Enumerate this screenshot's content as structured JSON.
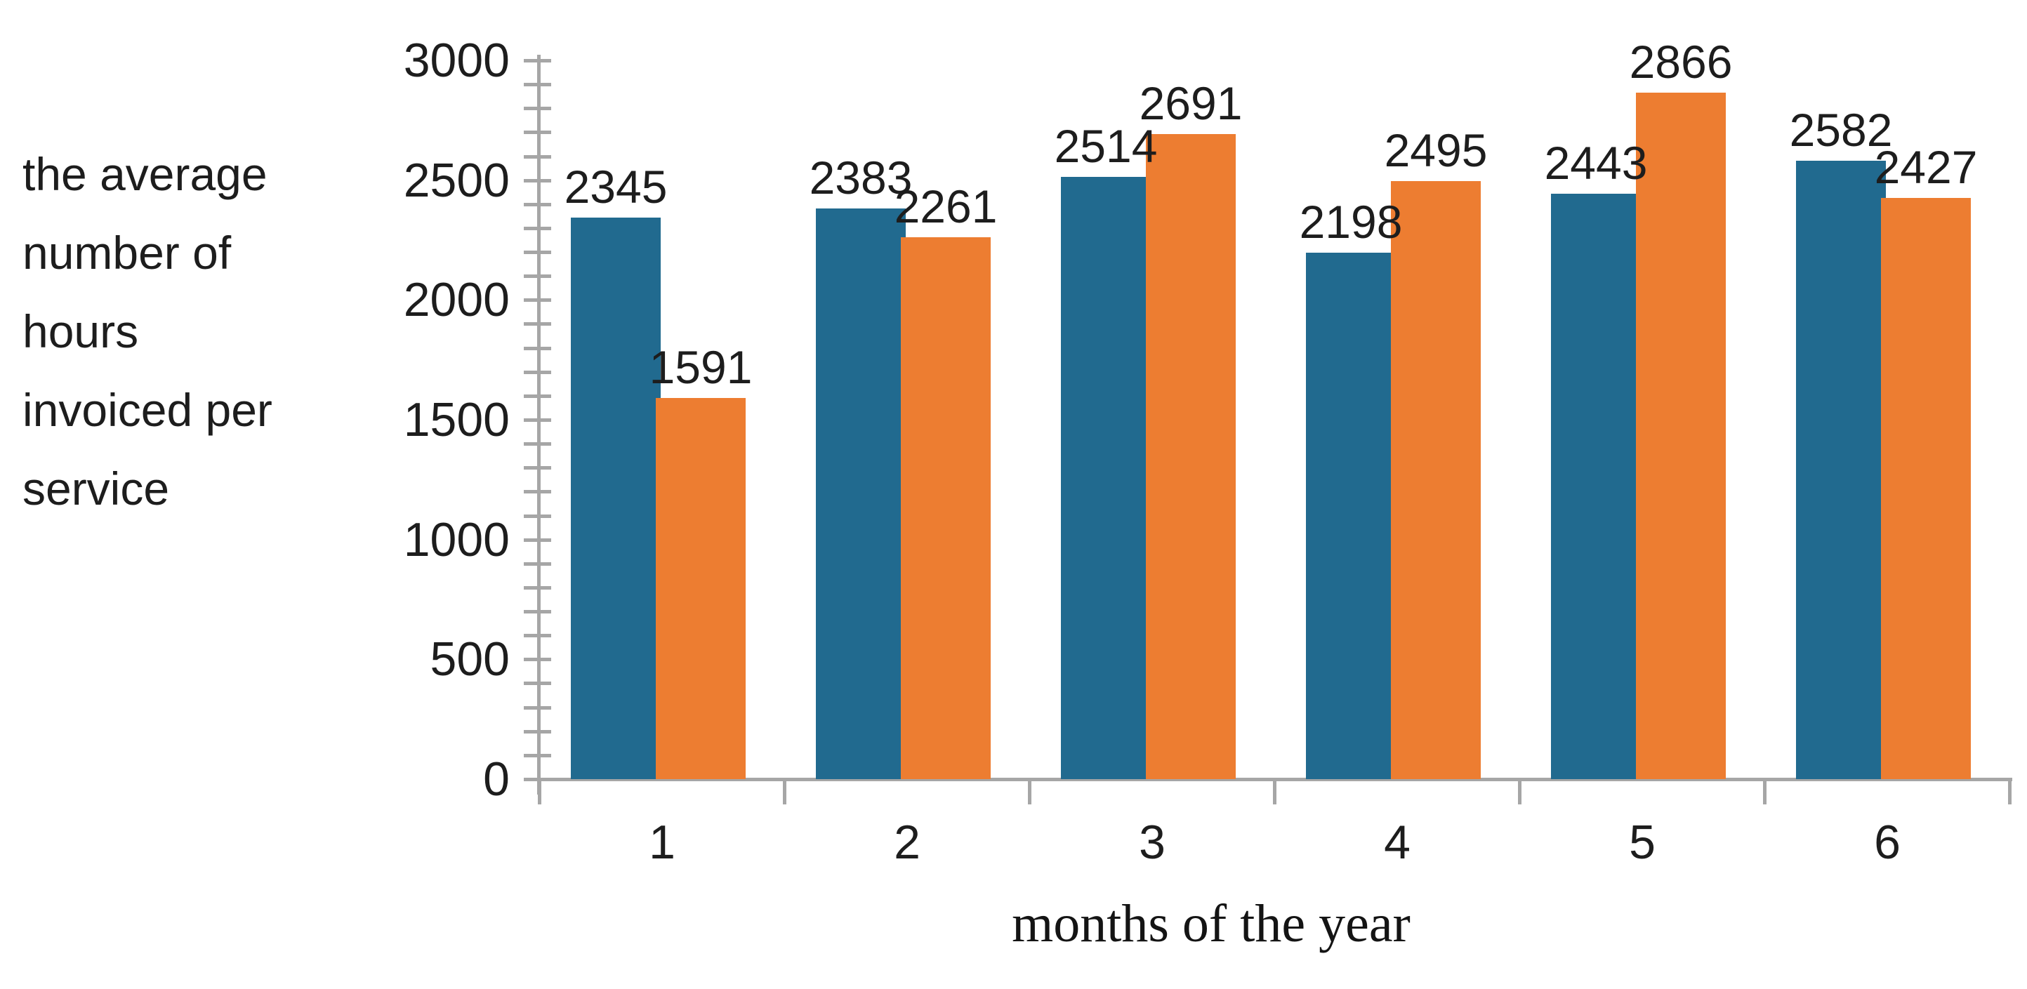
{
  "chart_data": {
    "type": "bar",
    "title": "",
    "categories": [
      "1",
      "2",
      "3",
      "4",
      "5",
      "6"
    ],
    "series": [
      {
        "name": "blue",
        "color": "#216a8f",
        "values": [
          2345,
          2383,
          2514,
          2198,
          2443,
          2582
        ]
      },
      {
        "name": "orange",
        "color": "#ed7d31",
        "values": [
          1591,
          2261,
          2691,
          2495,
          2866,
          2427
        ]
      }
    ],
    "xlabel": "months of the year",
    "ylabel": "the average number of hours invoiced per service",
    "ylabel_lines": [
      "the average",
      "number of",
      "hours",
      "invoiced per",
      "service"
    ],
    "ylim": [
      0,
      3000
    ],
    "y_ticks": [
      0,
      500,
      1000,
      1500,
      2000,
      2500,
      3000
    ],
    "y_minor_tick_step": 100,
    "grid": false,
    "legend": false,
    "data_labels": true
  },
  "style": {
    "background": "#ffffff",
    "axis_color": "#a6a6a6",
    "text_color": "#1d1d1d",
    "blue_series_color": "#216a8f",
    "orange_series_color": "#ed7d31"
  }
}
